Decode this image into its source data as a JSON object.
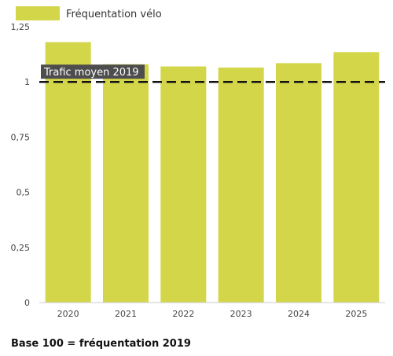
{
  "chart_data": {
    "type": "bar",
    "categories": [
      "2020",
      "2021",
      "2022",
      "2023",
      "2024",
      "2025"
    ],
    "series": [
      {
        "name": "Fréquentation vélo",
        "values": [
          1.18,
          1.08,
          1.07,
          1.065,
          1.085,
          1.135
        ],
        "color": "#d4d64a"
      }
    ],
    "ylim": [
      0,
      1.25
    ],
    "yticks": [
      0,
      0.25,
      0.5,
      0.75,
      1,
      1.25
    ],
    "ytick_labels": [
      "0",
      "0,25",
      "0,5",
      "0,75",
      "1",
      "1,25"
    ],
    "reference_line": {
      "label": "Trafic moyen 2019",
      "value": 1,
      "style": "dashed",
      "color": "#111111",
      "label_bg": "#4d4d4d"
    },
    "legend_position": "top-left",
    "grid": false
  },
  "footnote": "Base 100 = fréquentation 2019"
}
